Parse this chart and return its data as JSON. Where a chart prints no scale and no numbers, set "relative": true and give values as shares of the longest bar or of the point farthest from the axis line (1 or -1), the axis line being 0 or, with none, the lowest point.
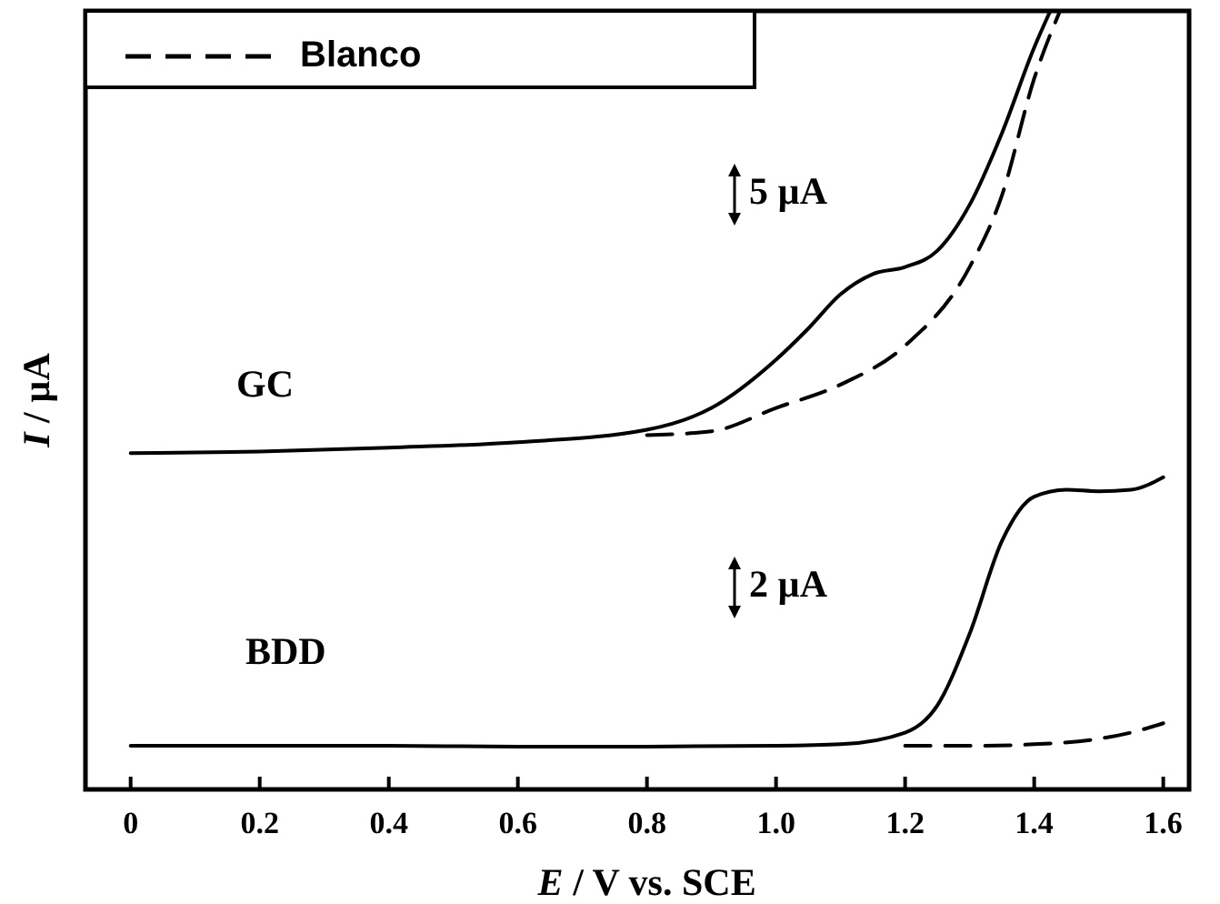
{
  "chart_data": {
    "type": "line",
    "relative": true,
    "xlabel": "E / V vs. SCE",
    "ylabel": "I / µA",
    "xlim": [
      -0.07,
      1.64
    ],
    "xticks": [
      0,
      0.2,
      0.4,
      0.6,
      0.8,
      {
        "value": 1,
        "label": "1.0"
      },
      1.2,
      1.4,
      1.6
    ],
    "legend": "top left",
    "marker": "none",
    "series": [
      {
        "color": "#000000",
        "line_style": "solid",
        "x": [
          0,
          0.2,
          0.4,
          0.6,
          0.8,
          0.9,
          1.0,
          1.05,
          1.1,
          1.15,
          1.2,
          1.25,
          1.3,
          1.35,
          1.4,
          1.425
        ],
        "values": [
          0.432,
          0.434,
          0.439,
          0.446,
          0.462,
          0.49,
          0.552,
          0.592,
          0.636,
          0.662,
          0.671,
          0.692,
          0.751,
          0.843,
          0.953,
          1
        ]
      },
      {
        "name": "Blanco",
        "color": "#000000",
        "line_style": "dashed",
        "x": [
          0.8,
          0.9,
          1.0,
          1.1,
          1.2,
          1.3,
          1.35,
          1.4,
          1.44
        ],
        "values": [
          0.455,
          0.46,
          0.49,
          0.52,
          0.57,
          0.671,
          0.763,
          0.913,
          1
        ]
      },
      {
        "color": "#000000",
        "line_style": "solid",
        "x": [
          0,
          0.2,
          0.4,
          0.6,
          0.8,
          1.0,
          1.1,
          1.2,
          1.25,
          1.3,
          1.35,
          1.4,
          1.45,
          1.5,
          1.55,
          1.6
        ],
        "values": [
          0.056,
          0.056,
          0.056,
          0.055,
          0.055,
          0.056,
          0.058,
          0.073,
          0.108,
          0.2,
          0.319,
          0.376,
          0.385,
          0.383,
          0.385,
          0.401
        ]
      },
      {
        "color": "#000000",
        "line_style": "dashed",
        "x": [
          1.2,
          1.3,
          1.4,
          1.5,
          1.55,
          1.6
        ],
        "values": [
          0.056,
          0.056,
          0.058,
          0.065,
          0.073,
          0.085
        ]
      }
    ],
    "annotations": [
      "GC",
      "BDD",
      "5 µA",
      "2 µA"
    ]
  }
}
